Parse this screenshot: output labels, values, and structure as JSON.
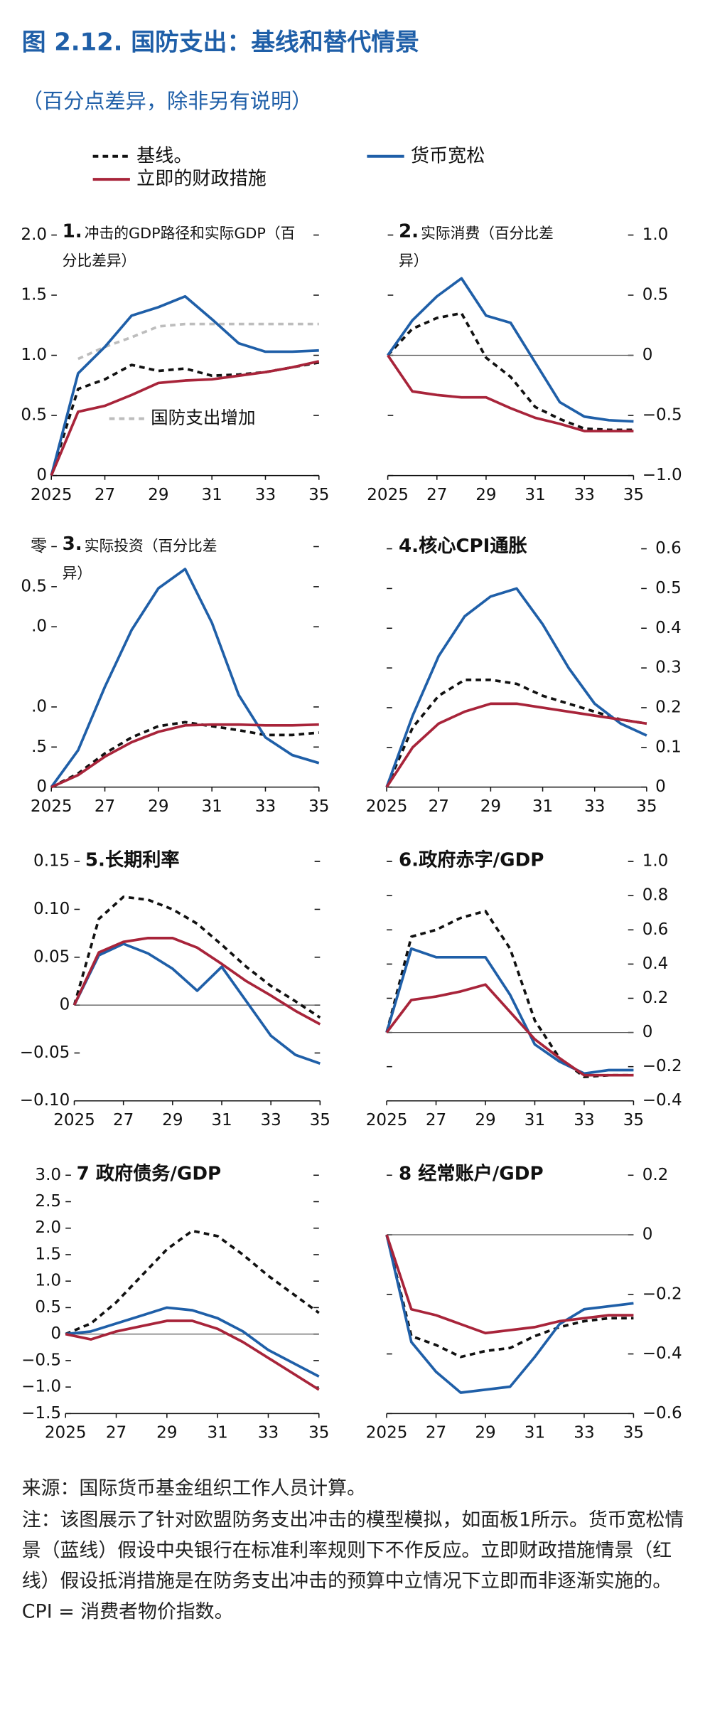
{
  "title": "图 2.12. 国防支出：基线和替代情景",
  "subtitle": "（百分点差异，除非另有说明）",
  "source": "来源：国际货币基金组织工作人员计算。",
  "note": "注：该图展示了针对欧盟防务支出冲击的模型模拟，如面板1所示。货币宽松情景（蓝线）假设中央银行在标准利率规则下不作反应。立即财政措施情景（红线）假设抵消措施是在防务支出冲击的预算中立情况下立即而非逐渐实施的。CPI = 消费者物价指数。",
  "chart_data": [
    {
      "type": "line",
      "number": "1.",
      "title": "冲击的GDP路径和实际GDP（百分比差异）",
      "yaxis": "left",
      "x": [
        2025,
        2026,
        2027,
        2028,
        2029,
        2030,
        2031,
        2032,
        2033,
        2034,
        2035
      ],
      "xlim": [
        2025,
        2035
      ],
      "xticks": [
        2025,
        {
          "value": 2027,
          "label": "27"
        },
        {
          "value": 2029,
          "label": "29"
        },
        {
          "value": 2031,
          "label": "31"
        },
        {
          "value": 2033,
          "label": "33"
        },
        {
          "value": 2035,
          "label": "35"
        }
      ],
      "ylim": [
        0,
        2
      ],
      "yticks": [
        0,
        0.5,
        {
          "value": 1,
          "label": "1.0"
        },
        1.5,
        {
          "value": 2,
          "label": "2.0"
        }
      ],
      "series": [
        {
          "name": "基线。",
          "color": "#111111",
          "style": "dashed",
          "values": [
            0,
            0.72,
            0.8,
            0.92,
            0.87,
            0.89,
            0.83,
            0.84,
            0.86,
            0.9,
            0.94
          ]
        },
        {
          "name": "货币宽松",
          "color": "#1f5fa8",
          "style": "solid",
          "values": [
            0,
            0.85,
            1.07,
            1.33,
            1.4,
            1.49,
            1.3,
            1.1,
            1.03,
            1.03,
            1.04
          ]
        },
        {
          "name": "立即的财政措施",
          "color": "#a8243a",
          "style": "solid",
          "values": [
            0,
            0.53,
            0.58,
            0.67,
            0.77,
            0.79,
            0.8,
            0.83,
            0.86,
            0.9,
            0.95
          ]
        },
        {
          "name": "国防支出增加",
          "color": "#bdbdbd",
          "style": "dashed",
          "inline_legend": true,
          "values": [
            null,
            0.97,
            1.07,
            1.15,
            1.24,
            1.26,
            1.26,
            1.26,
            1.26,
            1.26,
            1.26
          ]
        }
      ]
    },
    {
      "type": "line",
      "number": "2.",
      "title": "实际消费（百分比差异）",
      "yaxis": "right",
      "x": [
        2025,
        2026,
        2027,
        2028,
        2029,
        2030,
        2031,
        2032,
        2033,
        2034,
        2035
      ],
      "xlim": [
        2025,
        2035
      ],
      "xticks": [
        2025,
        {
          "value": 2027,
          "label": "27"
        },
        {
          "value": 2029,
          "label": "29"
        },
        {
          "value": 2031,
          "label": "31"
        },
        {
          "value": 2033,
          "label": "33"
        },
        {
          "value": 2035,
          "label": "35"
        }
      ],
      "ylim": [
        -1,
        1
      ],
      "yticks": [
        {
          "value": -1,
          "label": "−1.0"
        },
        {
          "value": -0.5,
          "label": "−0.5"
        },
        0,
        0.5,
        {
          "value": 1,
          "label": "1.0"
        }
      ],
      "series": [
        {
          "color": "#111111",
          "style": "dashed",
          "values": [
            0,
            0.22,
            0.31,
            0.35,
            -0.02,
            -0.18,
            -0.43,
            -0.53,
            -0.61,
            -0.62,
            -0.62
          ]
        },
        {
          "color": "#1f5fa8",
          "style": "solid",
          "values": [
            0,
            0.29,
            0.49,
            0.64,
            0.33,
            0.27,
            -0.06,
            -0.39,
            -0.51,
            -0.54,
            -0.55
          ]
        },
        {
          "color": "#a8243a",
          "style": "solid",
          "values": [
            0,
            -0.3,
            -0.33,
            -0.35,
            -0.35,
            -0.44,
            -0.52,
            -0.57,
            -0.63,
            -0.63,
            -0.63
          ]
        }
      ]
    },
    {
      "type": "line",
      "number": "3.",
      "title": "实际投资（百分比差异）",
      "yaxis": "left",
      "x": [
        2025,
        2026,
        2027,
        2028,
        2029,
        2030,
        2031,
        2032,
        2033,
        2034,
        2035
      ],
      "xlim": [
        2025,
        2035
      ],
      "xticks": [
        2025,
        {
          "value": 2027,
          "label": "27"
        },
        {
          "value": 2029,
          "label": "29"
        },
        {
          "value": 2031,
          "label": "31"
        },
        {
          "value": 2033,
          "label": "33"
        },
        {
          "value": 2035,
          "label": "35"
        }
      ],
      "ylim": [
        0,
        3
      ],
      "yticks": [
        0,
        {
          "value": 0.5,
          "label": ".5"
        },
        {
          "value": 1,
          "label": ".0"
        },
        {
          "value": 2,
          "label": ".0"
        },
        {
          "value": 2.5,
          "label": "0.5"
        },
        {
          "value": 3,
          "label": "零"
        }
      ],
      "series": [
        {
          "color": "#111111",
          "style": "dashed",
          "values": [
            0,
            0.17,
            0.42,
            0.62,
            0.76,
            0.81,
            0.76,
            0.71,
            0.65,
            0.65,
            0.68
          ]
        },
        {
          "color": "#1f5fa8",
          "style": "solid",
          "values": [
            0,
            0.46,
            1.25,
            1.96,
            2.48,
            2.72,
            2.05,
            1.15,
            0.62,
            0.4,
            0.3
          ]
        },
        {
          "color": "#a8243a",
          "style": "solid",
          "values": [
            0,
            0.15,
            0.38,
            0.56,
            0.69,
            0.77,
            0.78,
            0.78,
            0.77,
            0.77,
            0.78
          ]
        }
      ]
    },
    {
      "type": "line",
      "title": "4.核心CPI通胀",
      "yaxis": "right",
      "x": [
        2025,
        2026,
        2027,
        2028,
        2029,
        2030,
        2031,
        2032,
        2033,
        2034,
        2035
      ],
      "xlim": [
        2025,
        2035
      ],
      "xticks": [
        2025,
        {
          "value": 2027,
          "label": "27"
        },
        {
          "value": 2029,
          "label": "29"
        },
        {
          "value": 2031,
          "label": "31"
        },
        {
          "value": 2033,
          "label": "33"
        },
        {
          "value": 2035,
          "label": "35"
        }
      ],
      "ylim": [
        0,
        0.6
      ],
      "yticks": [
        0,
        0.1,
        0.2,
        0.3,
        0.4,
        0.5,
        0.6
      ],
      "series": [
        {
          "color": "#111111",
          "style": "dashed",
          "values": [
            0,
            0.15,
            0.23,
            0.27,
            0.27,
            0.26,
            0.23,
            0.21,
            0.19,
            0.17,
            0.16
          ]
        },
        {
          "color": "#1f5fa8",
          "style": "solid",
          "values": [
            0,
            0.18,
            0.33,
            0.43,
            0.48,
            0.5,
            0.41,
            0.3,
            0.21,
            0.16,
            0.13
          ]
        },
        {
          "color": "#a8243a",
          "style": "solid",
          "values": [
            0,
            0.1,
            0.16,
            0.19,
            0.21,
            0.21,
            0.2,
            0.19,
            0.18,
            0.17,
            0.16
          ]
        }
      ]
    },
    {
      "type": "line",
      "title": "5.长期利率",
      "yaxis": "left",
      "x": [
        2025,
        2026,
        2027,
        2028,
        2029,
        2030,
        2031,
        2032,
        2033,
        2034,
        2035
      ],
      "xlim": [
        2025,
        2035
      ],
      "xticks": [
        2025,
        {
          "value": 2027,
          "label": "27"
        },
        {
          "value": 2029,
          "label": "29"
        },
        {
          "value": 2031,
          "label": "31"
        },
        {
          "value": 2033,
          "label": "33"
        },
        {
          "value": 2035,
          "label": "35"
        }
      ],
      "ylim": [
        -0.1,
        0.15
      ],
      "yticks": [
        {
          "value": -0.1,
          "label": "−0.10"
        },
        {
          "value": -0.05,
          "label": "−0.05"
        },
        0,
        0.05,
        {
          "value": 0.1,
          "label": "0.10"
        },
        0.15
      ],
      "series": [
        {
          "color": "#111111",
          "style": "dashed",
          "values": [
            0,
            0.09,
            0.113,
            0.11,
            0.1,
            0.085,
            0.063,
            0.04,
            0.02,
            0.004,
            -0.013
          ]
        },
        {
          "color": "#1f5fa8",
          "style": "solid",
          "values": [
            0,
            0.052,
            0.064,
            0.054,
            0.038,
            0.015,
            0.04,
            0.004,
            -0.032,
            -0.052,
            -0.061
          ]
        },
        {
          "color": "#a8243a",
          "style": "solid",
          "values": [
            0,
            0.055,
            0.066,
            0.07,
            0.07,
            0.06,
            0.043,
            0.025,
            0.01,
            -0.006,
            -0.02
          ]
        }
      ]
    },
    {
      "type": "line",
      "title": "6.政府赤字/GDP",
      "yaxis": "right",
      "x": [
        2025,
        2026,
        2027,
        2028,
        2029,
        2030,
        2031,
        2032,
        2033,
        2034,
        2035
      ],
      "xlim": [
        2025,
        2035
      ],
      "xticks": [
        2025,
        {
          "value": 2027,
          "label": "27"
        },
        {
          "value": 2029,
          "label": "29"
        },
        {
          "value": 2031,
          "label": "31"
        },
        {
          "value": 2033,
          "label": "33"
        },
        {
          "value": 2035,
          "label": "35"
        }
      ],
      "ylim": [
        -0.4,
        1
      ],
      "yticks": [
        {
          "value": -0.4,
          "label": "−0.4"
        },
        {
          "value": -0.2,
          "label": "−0.2"
        },
        0,
        0.2,
        0.4,
        0.6,
        0.8,
        {
          "value": 1,
          "label": "1.0"
        }
      ],
      "series": [
        {
          "color": "#111111",
          "style": "dashed",
          "values": [
            0,
            0.56,
            0.6,
            0.67,
            0.71,
            0.49,
            0.07,
            -0.15,
            -0.26,
            -0.25,
            -0.25
          ]
        },
        {
          "color": "#1f5fa8",
          "style": "solid",
          "values": [
            0,
            0.49,
            0.44,
            0.44,
            0.44,
            0.22,
            -0.07,
            -0.17,
            -0.24,
            -0.22,
            -0.22
          ]
        },
        {
          "color": "#a8243a",
          "style": "solid",
          "values": [
            0,
            0.19,
            0.21,
            0.24,
            0.28,
            0.12,
            -0.04,
            -0.15,
            -0.25,
            -0.25,
            -0.25
          ]
        }
      ]
    },
    {
      "type": "line",
      "title": "7 政府债务/GDP",
      "yaxis": "left",
      "x": [
        2025,
        2026,
        2027,
        2028,
        2029,
        2030,
        2031,
        2032,
        2033,
        2034,
        2035
      ],
      "xlim": [
        2025,
        2035
      ],
      "xticks": [
        2025,
        {
          "value": 2027,
          "label": "27"
        },
        {
          "value": 2029,
          "label": "29"
        },
        {
          "value": 2031,
          "label": "31"
        },
        {
          "value": 2033,
          "label": "33"
        },
        {
          "value": 2035,
          "label": "35"
        }
      ],
      "ylim": [
        -1.5,
        3
      ],
      "yticks": [
        {
          "value": -1.5,
          "label": "−1.5"
        },
        {
          "value": -1,
          "label": "−1.0"
        },
        {
          "value": -0.5,
          "label": "−0.5"
        },
        0,
        0.5,
        {
          "value": 1,
          "label": "1.0"
        },
        1.5,
        {
          "value": 2,
          "label": "2.0"
        },
        2.5,
        {
          "value": 3,
          "label": "3.0"
        }
      ],
      "series": [
        {
          "color": "#111111",
          "style": "dashed",
          "values": [
            0,
            0.2,
            0.6,
            1.1,
            1.6,
            1.95,
            1.85,
            1.5,
            1.1,
            0.75,
            0.4
          ]
        },
        {
          "color": "#1f5fa8",
          "style": "solid",
          "values": [
            0,
            0.05,
            0.2,
            0.35,
            0.5,
            0.45,
            0.3,
            0.05,
            -0.3,
            -0.55,
            -0.8
          ]
        },
        {
          "color": "#a8243a",
          "style": "solid",
          "values": [
            0,
            -0.1,
            0.05,
            0.15,
            0.25,
            0.25,
            0.1,
            -0.15,
            -0.45,
            -0.75,
            -1.05
          ]
        }
      ]
    },
    {
      "type": "line",
      "title": "8 经常账户/GDP",
      "yaxis": "right",
      "x": [
        2025,
        2026,
        2027,
        2028,
        2029,
        2030,
        2031,
        2032,
        2033,
        2034,
        2035
      ],
      "xlim": [
        2025,
        2035
      ],
      "xticks": [
        2025,
        {
          "value": 2027,
          "label": "27"
        },
        {
          "value": 2029,
          "label": "29"
        },
        {
          "value": 2031,
          "label": "31"
        },
        {
          "value": 2033,
          "label": "33"
        },
        {
          "value": 2035,
          "label": "35"
        }
      ],
      "ylim": [
        -0.6,
        0.2
      ],
      "yticks": [
        {
          "value": -0.6,
          "label": "−0.6"
        },
        {
          "value": -0.4,
          "label": "−0.4"
        },
        {
          "value": -0.2,
          "label": "−0.2"
        },
        0,
        0.2
      ],
      "series": [
        {
          "color": "#111111",
          "style": "dashed",
          "values": [
            0,
            -0.34,
            -0.37,
            -0.41,
            -0.39,
            -0.38,
            -0.34,
            -0.31,
            -0.29,
            -0.28,
            -0.28
          ]
        },
        {
          "color": "#1f5fa8",
          "style": "solid",
          "values": [
            0,
            -0.36,
            -0.46,
            -0.53,
            -0.52,
            -0.51,
            -0.41,
            -0.3,
            -0.25,
            -0.24,
            -0.23
          ]
        },
        {
          "color": "#a8243a",
          "style": "solid",
          "values": [
            0,
            -0.25,
            -0.27,
            -0.3,
            -0.33,
            -0.32,
            -0.31,
            -0.29,
            -0.28,
            -0.27,
            -0.27
          ]
        }
      ]
    }
  ]
}
